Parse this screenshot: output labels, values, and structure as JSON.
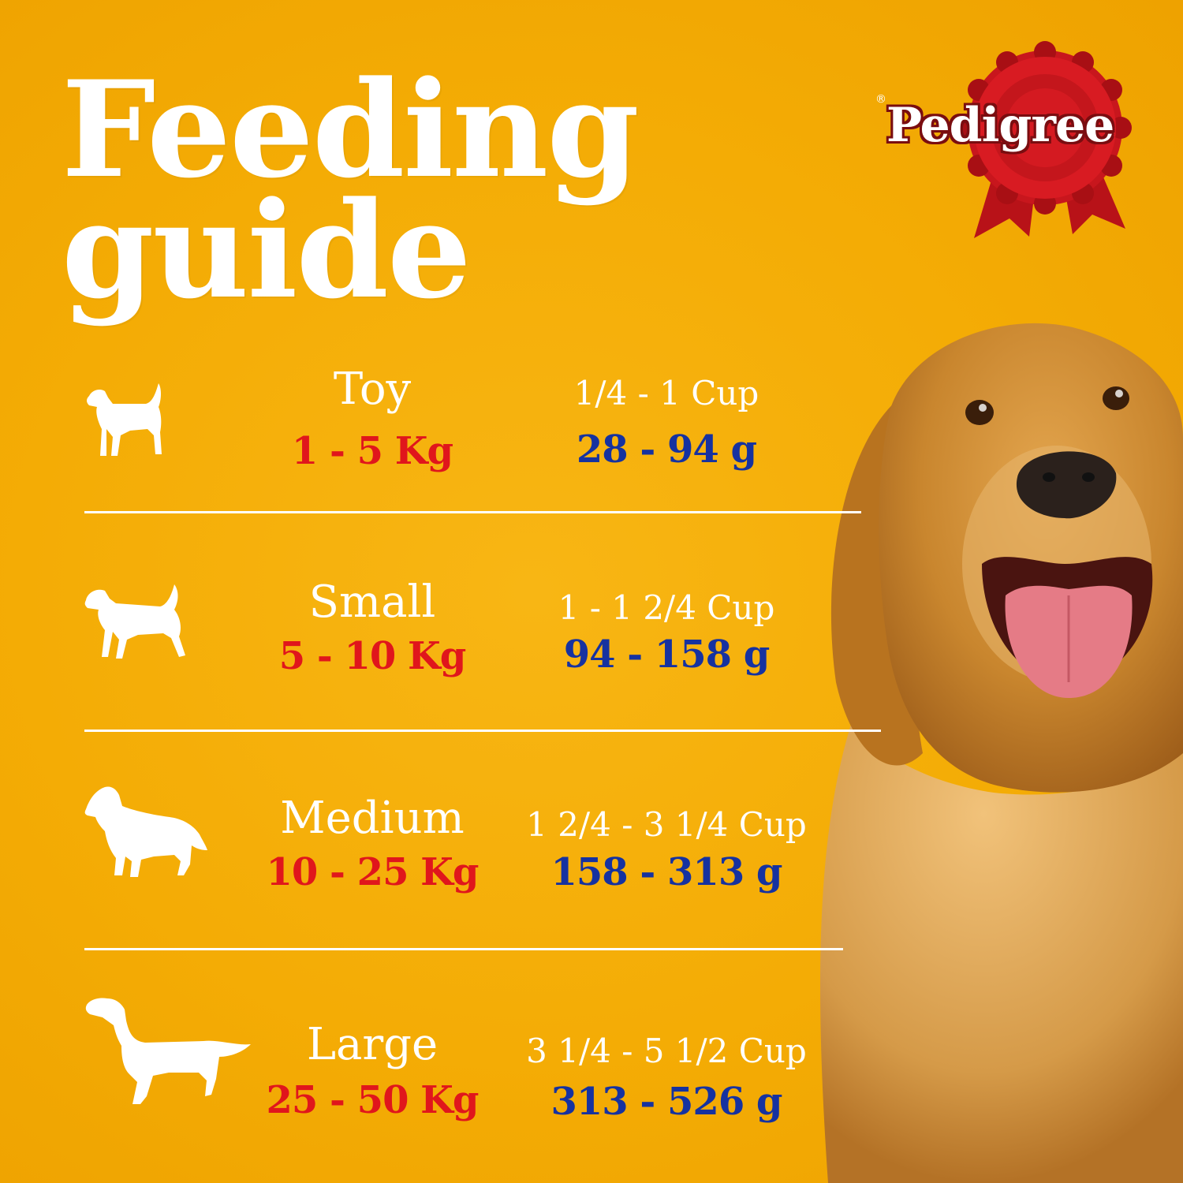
{
  "title": {
    "line1": "Feeding",
    "line2": "guide"
  },
  "brand": {
    "name": "Pedigree",
    "registered": "®"
  },
  "colors": {
    "background": "#f4ac05",
    "weight_red": "#e0161c",
    "grams_blue": "#1632a0",
    "text_white": "#ffffff",
    "logo_red": "#c4161c"
  },
  "rows": [
    {
      "icon": "toy-dog-icon",
      "size": "Toy",
      "weight": "1 - 5 Kg",
      "cups": "1/4  - 1 Cup",
      "grams": "28 - 94 g"
    },
    {
      "icon": "small-dog-icon",
      "size": "Small",
      "weight": "5 - 10 Kg",
      "cups": "1 - 1 2/4 Cup",
      "grams": "94 - 158 g"
    },
    {
      "icon": "medium-dog-icon",
      "size": "Medium",
      "weight": "10 - 25 Kg",
      "cups": "1 2/4 - 3 1/4 Cup",
      "grams": "158 - 313 g"
    },
    {
      "icon": "large-dog-icon",
      "size": "Large",
      "weight": "25 - 50 Kg",
      "cups": "3 1/4 - 5 1/2 Cup",
      "grams": "313 - 526 g"
    }
  ]
}
